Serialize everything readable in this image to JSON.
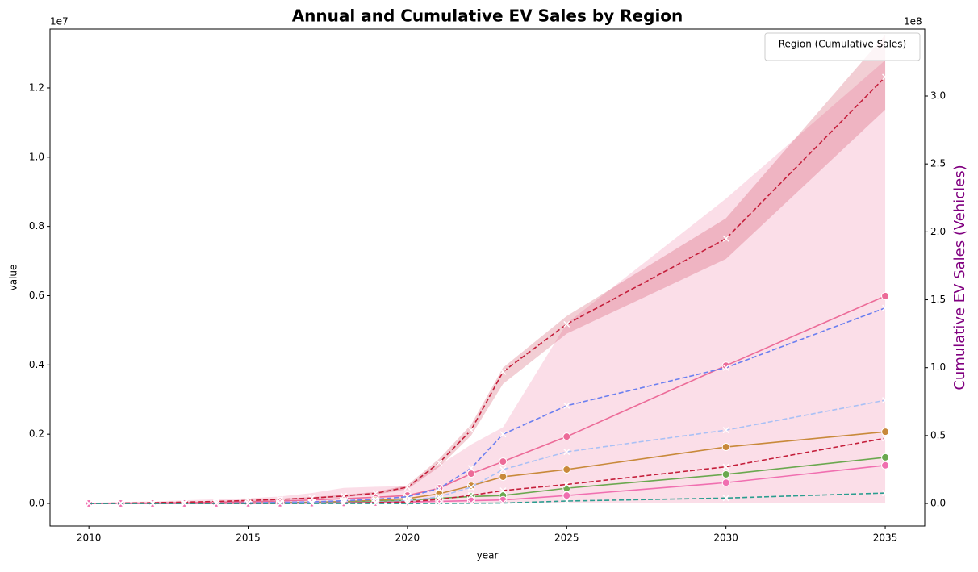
{
  "chart_data": {
    "type": "line",
    "title": "Annual and Cumulative EV Sales by Region",
    "xlabel": "year",
    "ylabel": "value",
    "y2label": "Cumulative EV Sales (Vehicles)",
    "y_offset_label": "1e7",
    "y2_offset_label": "1e8",
    "legend_title": "Region (Cumulative Sales)",
    "legend_loc": "upper right",
    "x": [
      2010,
      2011,
      2012,
      2013,
      2014,
      2015,
      2016,
      2017,
      2018,
      2019,
      2020,
      2021,
      2022,
      2023,
      2025,
      2030,
      2035
    ],
    "xlim": [
      2008.78,
      2036.24
    ],
    "xticks": [
      2010,
      2015,
      2020,
      2025,
      2030,
      2035
    ],
    "ylim": [
      -652000,
      13700000
    ],
    "yticks": [
      {
        "value": 0,
        "label": "0.0"
      },
      {
        "value": 2000000,
        "label": "0.2"
      },
      {
        "value": 4000000,
        "label": "0.4"
      },
      {
        "value": 6000000,
        "label": "0.6"
      },
      {
        "value": 8000000,
        "label": "0.8"
      },
      {
        "value": 10000000,
        "label": "1.0"
      },
      {
        "value": 12000000,
        "label": "1.2"
      }
    ],
    "y2lim": [
      -16600000,
      349300000
    ],
    "y2ticks": [
      {
        "value": 0,
        "label": "0.0"
      },
      {
        "value": 50000000,
        "label": "0.5"
      },
      {
        "value": 100000000,
        "label": "1.0"
      },
      {
        "value": 150000000,
        "label": "1.5"
      },
      {
        "value": 200000000,
        "label": "2.0"
      },
      {
        "value": 250000000,
        "label": "2.5"
      },
      {
        "value": 300000000,
        "label": "3.0"
      }
    ],
    "series": [
      {
        "color": "#ec6b98",
        "axis": "y",
        "marker": "o",
        "dashed": false,
        "values": [
          2000,
          5000,
          10000,
          20000,
          30000,
          50000,
          70000,
          100000,
          140000,
          180000,
          230000,
          440000,
          860000,
          1210000,
          1930000,
          3980000,
          5990000
        ],
        "lower": [
          0,
          0,
          0,
          0,
          0,
          0,
          0,
          0,
          0,
          0,
          0,
          0,
          0,
          0,
          0,
          0,
          0
        ],
        "upper": [
          20000,
          40000,
          60000,
          90000,
          120000,
          150000,
          200000,
          300000,
          450000,
          480000,
          500000,
          1100000,
          1700000,
          2200000,
          5200000,
          8800000,
          12800000
        ]
      },
      {
        "color": "#c8893a",
        "axis": "y",
        "marker": "o",
        "dashed": false,
        "values": [
          0,
          0,
          1000,
          3000,
          6000,
          10000,
          20000,
          35000,
          55000,
          90000,
          140000,
          280000,
          510000,
          770000,
          980000,
          1630000,
          2070000
        ]
      },
      {
        "color": "#6aa84f",
        "axis": "y",
        "marker": "o",
        "dashed": false,
        "values": [
          0,
          0,
          0,
          1000,
          2000,
          5000,
          10000,
          20000,
          35000,
          60000,
          90000,
          150000,
          200000,
          230000,
          440000,
          840000,
          1330000
        ]
      },
      {
        "color": "#f06fb0",
        "axis": "y",
        "marker": "o",
        "dashed": false,
        "values": [
          0,
          0,
          0,
          0,
          1000,
          2000,
          4000,
          8000,
          15000,
          25000,
          40000,
          60000,
          80000,
          100000,
          230000,
          600000,
          1100000
        ]
      },
      {
        "color": "#c41e3a",
        "axis": "y2",
        "marker": "x",
        "dashed": true,
        "values": [
          0,
          300000,
          600000,
          1000000,
          1500000,
          2200000,
          3000000,
          4000000,
          5500000,
          7500000,
          12000000,
          30000000,
          54000000,
          97000000,
          132000000,
          195000000,
          314000000
        ],
        "lower": [
          0,
          200000,
          400000,
          800000,
          1200000,
          1800000,
          2500000,
          3300000,
          4600000,
          6500000,
          10500000,
          27000000,
          50000000,
          88000000,
          125000000,
          180000000,
          290000000
        ],
        "upper": [
          0,
          400000,
          800000,
          1200000,
          1800000,
          2600000,
          3500000,
          4700000,
          6400000,
          8500000,
          13500000,
          33000000,
          58000000,
          100000000,
          138000000,
          210000000,
          345000000
        ]
      },
      {
        "color": "#6b7ff0",
        "axis": "y2",
        "marker": "x",
        "dashed": true,
        "values": [
          0,
          0,
          0,
          100000,
          200000,
          400000,
          800000,
          1200000,
          2000000,
          3000000,
          5000000,
          11000000,
          26000000,
          51000000,
          72000000,
          100000000,
          144000000
        ]
      },
      {
        "color": "#a9c0f5",
        "axis": "y2",
        "marker": "x",
        "dashed": true,
        "values": [
          0,
          0,
          0,
          0,
          0,
          100000,
          200000,
          400000,
          700000,
          1000000,
          2000000,
          5000000,
          12000000,
          25000000,
          38000000,
          54000000,
          76000000
        ]
      },
      {
        "color": "#c41e3a",
        "axis": "y2",
        "marker": "x",
        "dashed": true,
        "values": [
          0,
          0,
          0,
          0,
          0,
          0,
          100000,
          200000,
          400000,
          700000,
          1200000,
          3000000,
          6000000,
          9500000,
          14000000,
          27000000,
          48000000
        ]
      },
      {
        "color": "#2a9d8f",
        "axis": "y2",
        "marker": "x",
        "dashed": true,
        "values": [
          0,
          0,
          0,
          0,
          0,
          0,
          0,
          0,
          0,
          0,
          0,
          50000,
          150000,
          300000,
          1800000,
          4000000,
          7700000
        ]
      }
    ]
  }
}
